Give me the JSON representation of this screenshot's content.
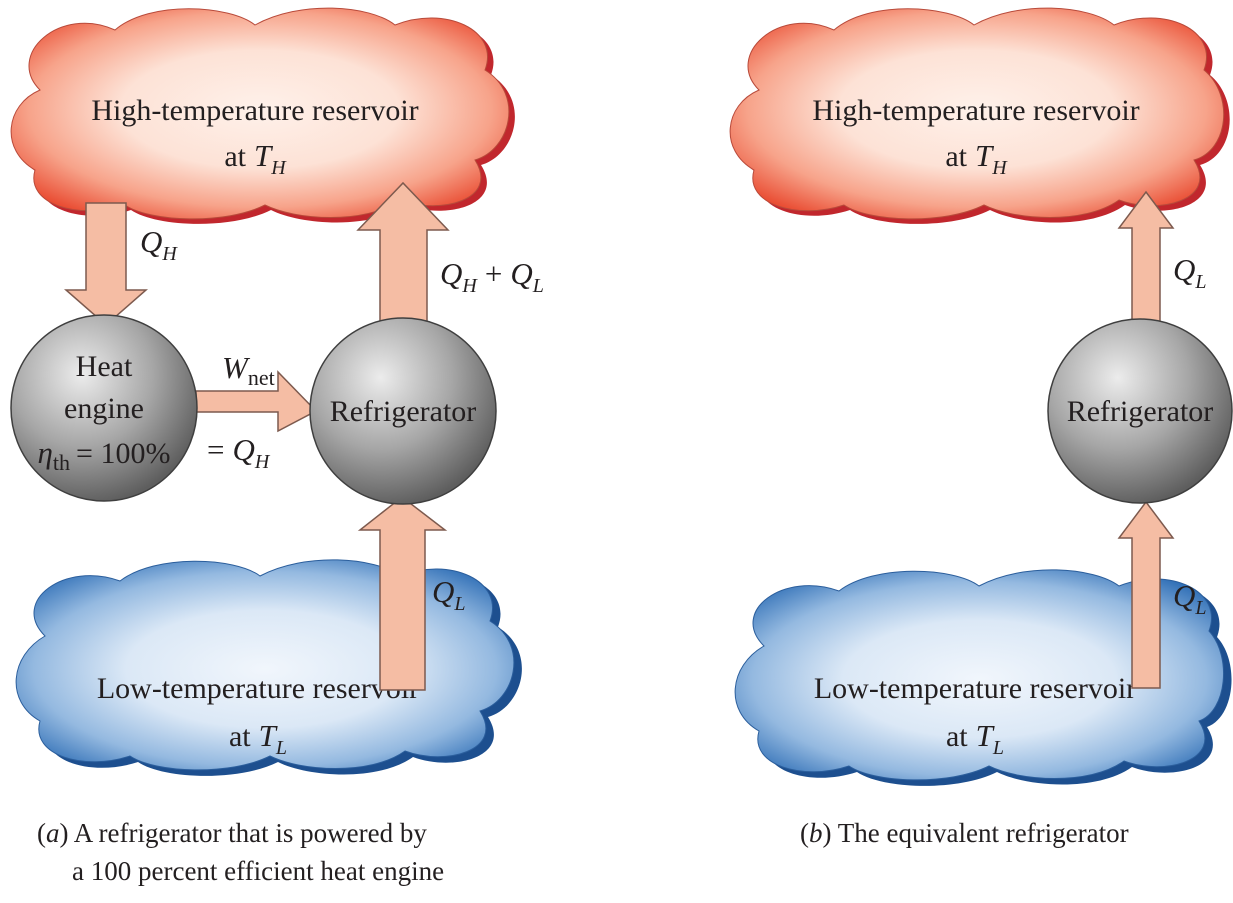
{
  "panel_a": {
    "hot_reservoir": {
      "line1": "High-temperature reservoir",
      "line2_prefix": "at",
      "temp_symbol": "T",
      "temp_subscript": "H"
    },
    "cold_reservoir": {
      "line1": "Low-temperature reservoir",
      "line2_prefix": "at",
      "temp_symbol": "T",
      "temp_subscript": "L"
    },
    "heat_engine": {
      "line1": "Heat",
      "line2": "engine",
      "eta_symbol": "η",
      "eta_subscript": "th",
      "eta_value": "= 100%"
    },
    "refrigerator": {
      "label": "Refrigerator"
    },
    "arrow_qh": {
      "symbol": "Q",
      "subscript": "H"
    },
    "arrow_qh_plus_ql": {
      "sym1": "Q",
      "sub1": "H",
      "op": "+",
      "sym2": "Q",
      "sub2": "L"
    },
    "arrow_wnet": {
      "symbol": "W",
      "subscript": "net",
      "eq_prefix": "=",
      "eq_symbol": "Q",
      "eq_subscript": "H"
    },
    "arrow_ql": {
      "symbol": "Q",
      "subscript": "L"
    },
    "caption": {
      "tag": "a",
      "line1": "A refrigerator that is powered by",
      "line2": "a 100 percent efficient heat engine"
    }
  },
  "panel_b": {
    "hot_reservoir": {
      "line1": "High-temperature reservoir",
      "line2_prefix": "at",
      "temp_symbol": "T",
      "temp_subscript": "H"
    },
    "cold_reservoir": {
      "line1": "Low-temperature reservoir",
      "line2_prefix": "at",
      "temp_symbol": "T",
      "temp_subscript": "L"
    },
    "refrigerator": {
      "label": "Refrigerator"
    },
    "arrow_ql_top": {
      "symbol": "Q",
      "subscript": "L"
    },
    "arrow_ql_bottom": {
      "symbol": "Q",
      "subscript": "L"
    },
    "caption": {
      "tag": "b",
      "text": "The equivalent refrigerator"
    }
  },
  "colors": {
    "hot_cloud_edge": "#e8492f",
    "hot_cloud_center": "#fde9e0",
    "cold_cloud_edge": "#2e6fb6",
    "cold_cloud_center": "#e8f0fa",
    "arrow_fill": "#f5bda4",
    "arrow_stroke": "#7d5a4e",
    "device_gray": "#8a8a8a"
  }
}
